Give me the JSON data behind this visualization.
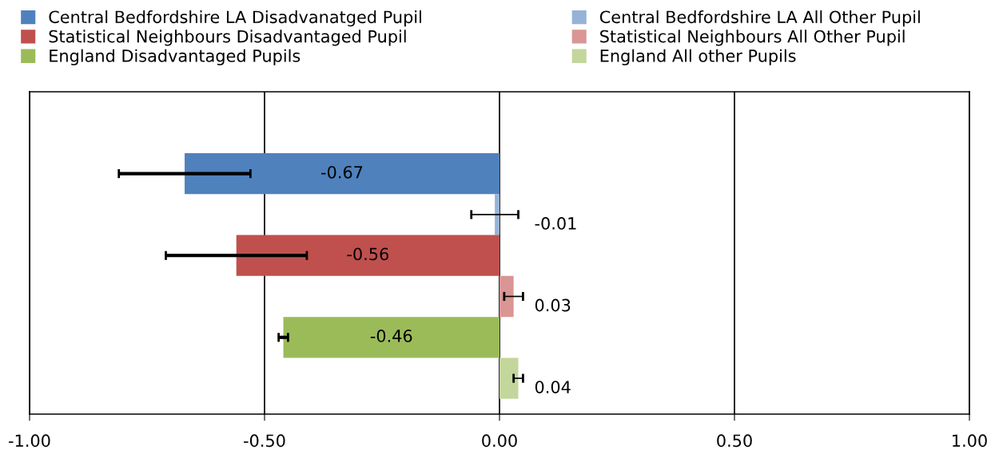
{
  "chart_data": {
    "type": "bar",
    "orientation": "horizontal",
    "categories": [
      null
    ],
    "series": [
      {
        "name": "Central Bedfordshire LA Disadvanatged Pupil",
        "color": "#4f81bd",
        "values": [
          -0.67
        ],
        "errors": [
          0.14
        ],
        "value_labels": [
          "-0.67"
        ]
      },
      {
        "name": "Central Bedfordshire LA All Other Pupil",
        "color": "#95b3d7",
        "values": [
          -0.01
        ],
        "errors": [
          0.05
        ],
        "value_labels": [
          "-0.01"
        ]
      },
      {
        "name": "Statistical Neighbours Disadvantaged Pupil",
        "color": "#c0504d",
        "values": [
          -0.56
        ],
        "errors": [
          0.15
        ],
        "value_labels": [
          "-0.56"
        ]
      },
      {
        "name": "Statistical Neighbours All Other Pupil",
        "color": "#d99694",
        "values": [
          0.03
        ],
        "errors": [
          0.02
        ],
        "value_labels": [
          "0.03"
        ]
      },
      {
        "name": "England Disadvantaged Pupils",
        "color": "#9bbb59",
        "values": [
          -0.46
        ],
        "errors": [
          0.01
        ],
        "value_labels": [
          "-0.46"
        ]
      },
      {
        "name": "England All other Pupils",
        "color": "#c3d69b",
        "values": [
          0.04
        ],
        "errors": [
          0.01
        ],
        "value_labels": [
          "0.04"
        ]
      }
    ],
    "xlim": [
      -1,
      1
    ],
    "xticks": [
      {
        "value": -1,
        "label": "-1.00"
      },
      {
        "value": -0.5,
        "label": "-0.50"
      },
      {
        "value": 0,
        "label": "0.00"
      },
      {
        "value": 0.5,
        "label": "0.50"
      },
      {
        "value": 1,
        "label": "1.00"
      }
    ],
    "grid": "x",
    "legend": "top"
  }
}
